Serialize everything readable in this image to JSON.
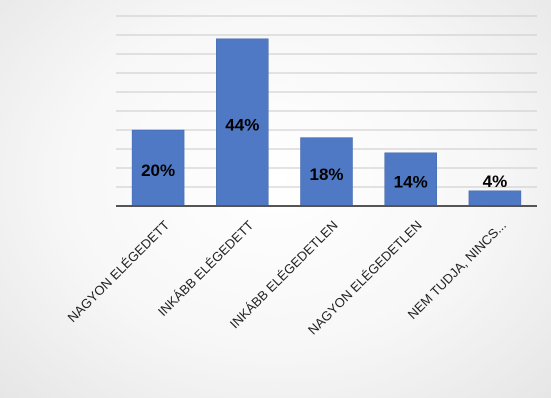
{
  "chart_data": {
    "type": "bar",
    "categories": [
      "NAGYON ELÉGEDETT",
      "INKÁBB ELÉGEDETT",
      "INKÁBB ELÉGEDETLEN",
      "NAGYON ELÉGEDETLEN",
      "NEM TUDJA, NINCS..."
    ],
    "values": [
      20,
      44,
      18,
      14,
      4
    ],
    "data_labels": [
      "20%",
      "44%",
      "18%",
      "14%",
      "4%"
    ],
    "title": "",
    "xlabel": "",
    "ylabel": "",
    "ylim": [
      0,
      52
    ],
    "grid": true,
    "legend": "none",
    "colors": {
      "bar": "#4f79c4",
      "bar_edge": "#3d63a8",
      "grid": "#c9c9c9",
      "axis": "#555555",
      "text": "#000000",
      "tick_text": "#222222"
    }
  }
}
